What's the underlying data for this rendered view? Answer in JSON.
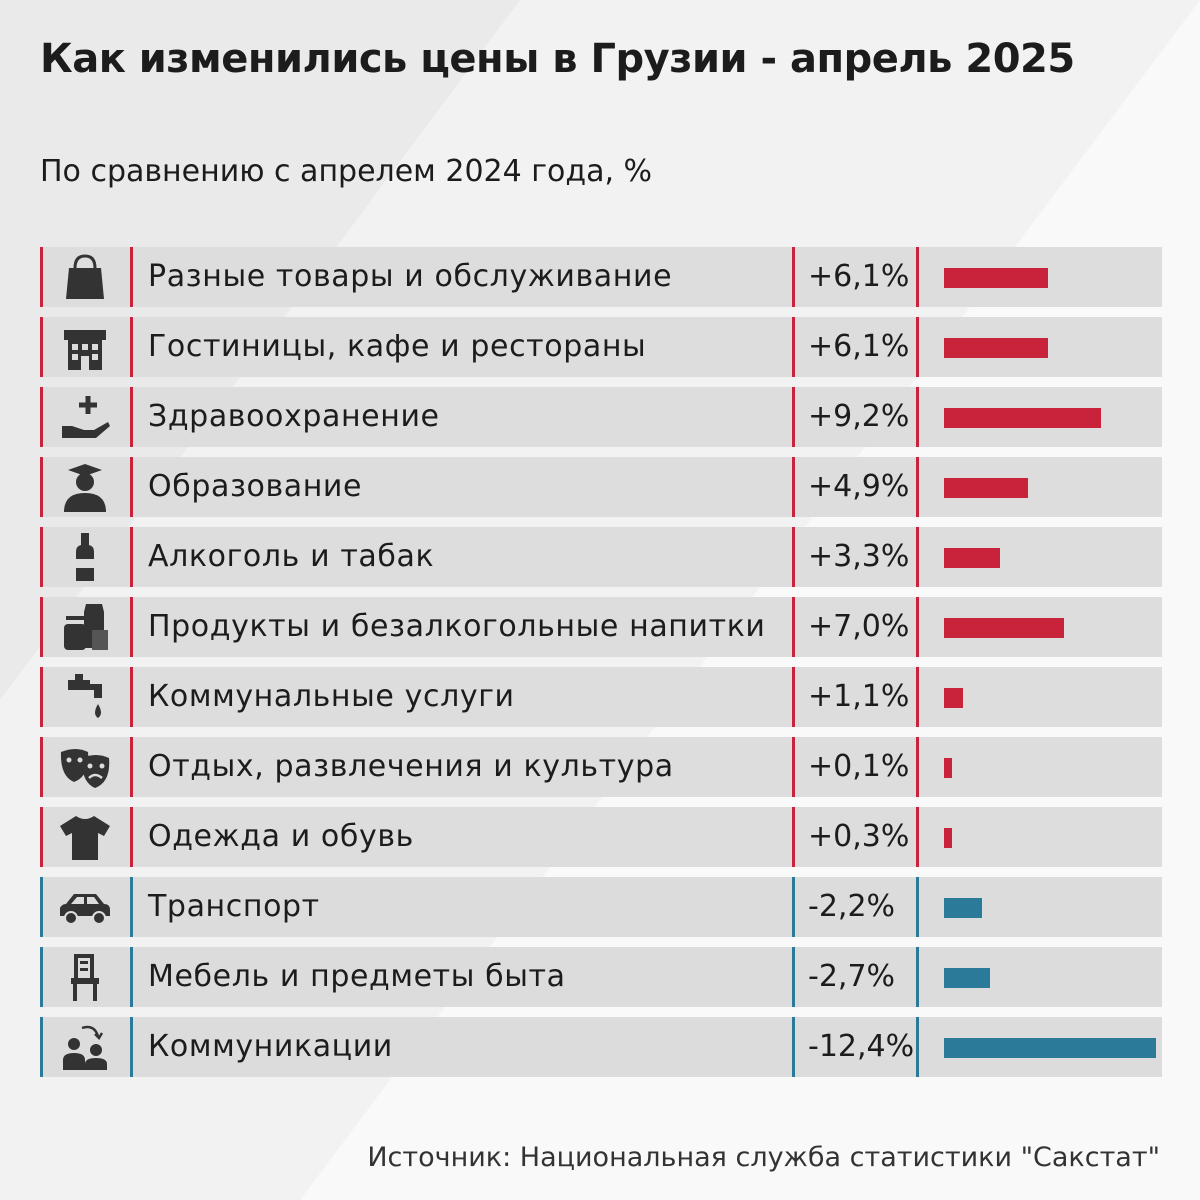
{
  "title": "Как изменились цены в Грузии - апрель 2025",
  "subtitle": "По сравнению с апрелем 2024 года, %",
  "source": "Источник: Национальная служба статистики \"Сакстат\"",
  "colors": {
    "positive": "#c8233a",
    "negative": "#2b7a99",
    "text": "#1c1c1c"
  },
  "chart_data": {
    "type": "bar",
    "orientation": "horizontal",
    "title": "Как изменились цены в Грузии - апрель 2025",
    "subtitle": "По сравнению с апрелем 2024 года, %",
    "unit": "%",
    "categories": [
      "Разные товары и обслуживание",
      "Гостиницы, кафе и рестораны",
      "Здравоохранение",
      "Образование",
      "Алкоголь и табак",
      "Продукты и безалкогольные напитки",
      "Коммунальные услуги",
      "Отдых, развлечения и культура",
      "Одежда и обувь",
      "Транспорт",
      "Мебель и предметы быта",
      "Коммуникации"
    ],
    "values": [
      6.1,
      6.1,
      9.2,
      4.9,
      3.3,
      7.0,
      1.1,
      0.1,
      0.3,
      -2.2,
      -2.7,
      -12.4
    ],
    "value_labels": [
      "+6,1%",
      "+6,1%",
      "+9,2%",
      "+4,9%",
      "+3,3%",
      "+7,0%",
      "+1,1%",
      "+0,1%",
      "+0,3%",
      "-2,2%",
      "-2,7%",
      "-12,4%"
    ],
    "icons": [
      "shopping-bag-icon",
      "hotel-building-icon",
      "health-hand-plus-icon",
      "graduate-icon",
      "bottle-icon",
      "groceries-icon",
      "water-tap-icon",
      "theater-masks-icon",
      "tshirt-icon",
      "car-icon",
      "chair-icon",
      "communication-people-icon"
    ]
  }
}
